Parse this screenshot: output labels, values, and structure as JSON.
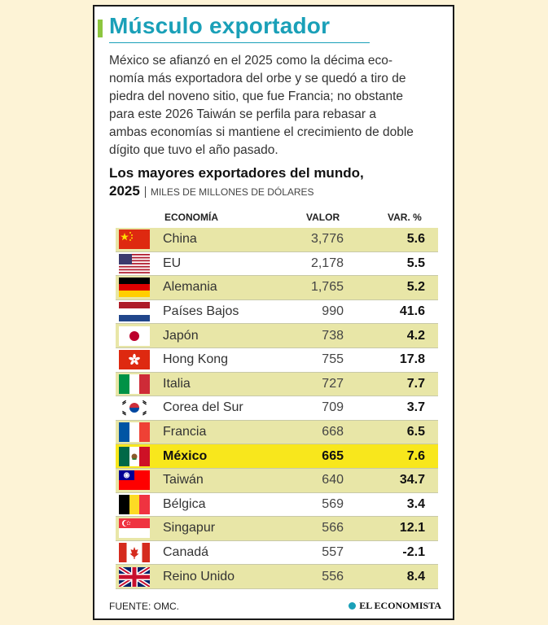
{
  "title": "Músculo exportador",
  "intro_lines": [
    "México se afianzó en el 2025 como la décima eco-",
    "nomía más exportadora del orbe y se quedó a tiro de",
    "piedra del noveno sitio, que fue Francia; no obstante",
    "para este 2026 Taiwán se perfila para rebasar a",
    "ambas economías si mantiene el crecimiento de doble",
    "dígito que tuvo el año pasado."
  ],
  "subtitle_line1": "Los mayores exportadores del mundo,",
  "subtitle_year": "2025",
  "units": "MILES DE MILLONES DE DÓLARES",
  "source": "FUENTE: OMC.",
  "brand": "EL ECONOMISTA",
  "colors": {
    "accent": "#1aa0b8",
    "green_bar": "#8dc63f",
    "row_shade": "#e8e6a7",
    "highlight": "#f8e71c"
  },
  "chart_data": {
    "type": "table",
    "title": "Los mayores exportadores del mundo, 2025",
    "units": "MILES DE MILLONES DE DÓLARES",
    "columns": [
      "ECONOMÍA",
      "VALOR",
      "VAR. %"
    ],
    "rows": [
      {
        "flag": "china-flag",
        "economy": "China",
        "value": "3,776",
        "var": "5.6"
      },
      {
        "flag": "usa-flag",
        "economy": "EU",
        "value": "2,178",
        "var": "5.5"
      },
      {
        "flag": "germany-flag",
        "economy": "Alemania",
        "value": "1,765",
        "var": "5.2"
      },
      {
        "flag": "netherlands-flag",
        "economy": "Países Bajos",
        "value": "990",
        "var": "41.6"
      },
      {
        "flag": "japan-flag",
        "economy": "Japón",
        "value": "738",
        "var": "4.2"
      },
      {
        "flag": "hongkong-flag",
        "economy": "Hong Kong",
        "value": "755",
        "var": "17.8"
      },
      {
        "flag": "italy-flag",
        "economy": "Italia",
        "value": "727",
        "var": "7.7"
      },
      {
        "flag": "southkorea-flag",
        "economy": "Corea del Sur",
        "value": "709",
        "var": "3.7"
      },
      {
        "flag": "france-flag",
        "economy": "Francia",
        "value": "668",
        "var": "6.5"
      },
      {
        "flag": "mexico-flag",
        "economy": "México",
        "value": "665",
        "var": "7.6",
        "highlight": true
      },
      {
        "flag": "taiwan-flag",
        "economy": "Taiwán",
        "value": "640",
        "var": "34.7"
      },
      {
        "flag": "belgium-flag",
        "economy": "Bélgica",
        "value": "569",
        "var": "3.4"
      },
      {
        "flag": "singapore-flag",
        "economy": "Singapur",
        "value": "566",
        "var": "12.1"
      },
      {
        "flag": "canada-flag",
        "economy": "Canadá",
        "value": "557",
        "var": "-2.1"
      },
      {
        "flag": "uk-flag",
        "economy": "Reino Unido",
        "value": "556",
        "var": "8.4"
      }
    ]
  }
}
